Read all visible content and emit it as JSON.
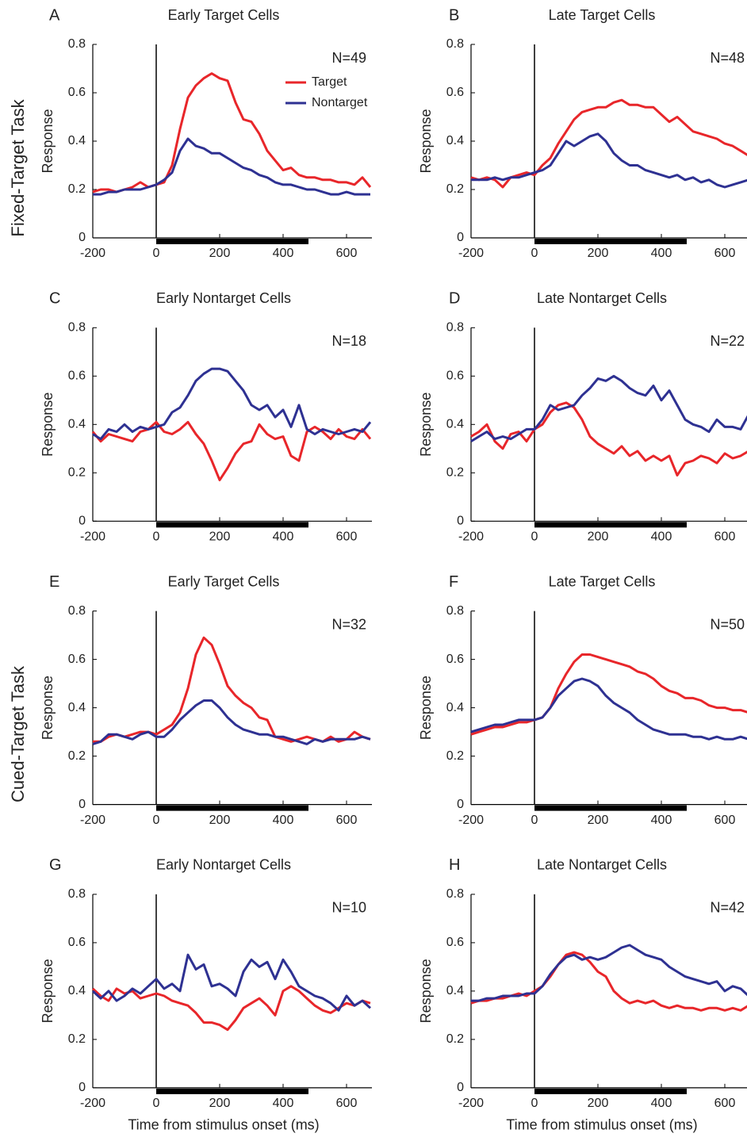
{
  "task_labels": [
    "Fixed-Target Task",
    "Cued-Target Task"
  ],
  "chart_data": [
    {
      "type": "line",
      "panel": "A",
      "title": "Early Target Cells",
      "annotation": "N=49",
      "ylabel": "Response",
      "x": [
        -200,
        -175,
        -150,
        -125,
        -100,
        -75,
        -50,
        -25,
        0,
        25,
        50,
        75,
        100,
        125,
        150,
        175,
        200,
        225,
        250,
        275,
        300,
        325,
        350,
        375,
        400,
        425,
        450,
        475,
        500,
        525,
        550,
        575,
        600,
        625,
        650,
        675
      ],
      "series": [
        {
          "name": "Target",
          "color": "#e8262a",
          "values": [
            0.19,
            0.2,
            0.2,
            0.19,
            0.2,
            0.21,
            0.23,
            0.21,
            0.22,
            0.23,
            0.3,
            0.45,
            0.58,
            0.63,
            0.66,
            0.68,
            0.66,
            0.65,
            0.56,
            0.49,
            0.48,
            0.43,
            0.36,
            0.32,
            0.28,
            0.29,
            0.26,
            0.25,
            0.25,
            0.24,
            0.24,
            0.23,
            0.23,
            0.22,
            0.25,
            0.21
          ]
        },
        {
          "name": "Nontarget",
          "color": "#2e3192",
          "values": [
            0.18,
            0.18,
            0.19,
            0.19,
            0.2,
            0.2,
            0.2,
            0.21,
            0.22,
            0.24,
            0.27,
            0.36,
            0.41,
            0.38,
            0.37,
            0.35,
            0.35,
            0.33,
            0.31,
            0.29,
            0.28,
            0.26,
            0.25,
            0.23,
            0.22,
            0.22,
            0.21,
            0.2,
            0.2,
            0.19,
            0.18,
            0.18,
            0.19,
            0.18,
            0.18,
            0.18
          ]
        }
      ],
      "stimulus_bar": [
        0,
        480
      ],
      "xlim": [
        -200,
        680
      ],
      "ylim": [
        0,
        0.8
      ],
      "xticks": [
        -200,
        0,
        200,
        400,
        600
      ],
      "yticks": [
        0,
        0.2,
        0.4,
        0.6,
        0.8
      ],
      "legend": "upper right"
    },
    {
      "type": "line",
      "panel": "B",
      "title": "Late Target Cells",
      "annotation": "N=48",
      "ylabel": "Response",
      "x": [
        -200,
        -175,
        -150,
        -125,
        -100,
        -75,
        -50,
        -25,
        0,
        25,
        50,
        75,
        100,
        125,
        150,
        175,
        200,
        225,
        250,
        275,
        300,
        325,
        350,
        375,
        400,
        425,
        450,
        475,
        500,
        525,
        550,
        575,
        600,
        625,
        650,
        675
      ],
      "series": [
        {
          "color": "#e8262a",
          "values": [
            0.25,
            0.24,
            0.25,
            0.24,
            0.21,
            0.25,
            0.26,
            0.27,
            0.26,
            0.3,
            0.33,
            0.39,
            0.44,
            0.49,
            0.52,
            0.53,
            0.54,
            0.54,
            0.56,
            0.57,
            0.55,
            0.55,
            0.54,
            0.54,
            0.51,
            0.48,
            0.5,
            0.47,
            0.44,
            0.43,
            0.42,
            0.41,
            0.39,
            0.38,
            0.36,
            0.34
          ]
        },
        {
          "color": "#2e3192",
          "values": [
            0.24,
            0.24,
            0.24,
            0.25,
            0.24,
            0.25,
            0.25,
            0.26,
            0.27,
            0.28,
            0.3,
            0.35,
            0.4,
            0.38,
            0.4,
            0.42,
            0.43,
            0.4,
            0.35,
            0.32,
            0.3,
            0.3,
            0.28,
            0.27,
            0.26,
            0.25,
            0.26,
            0.24,
            0.25,
            0.23,
            0.24,
            0.22,
            0.21,
            0.22,
            0.23,
            0.24
          ]
        }
      ],
      "stimulus_bar": [
        0,
        480
      ],
      "xlim": [
        -200,
        680
      ],
      "ylim": [
        0,
        0.8
      ],
      "xticks": [
        -200,
        0,
        200,
        400,
        600
      ],
      "yticks": [
        0,
        0.2,
        0.4,
        0.6,
        0.8
      ]
    },
    {
      "type": "line",
      "panel": "C",
      "title": "Early Nontarget Cells",
      "annotation": "N=18",
      "ylabel": "Response",
      "x": [
        -200,
        -175,
        -150,
        -125,
        -100,
        -75,
        -50,
        -25,
        0,
        25,
        50,
        75,
        100,
        125,
        150,
        175,
        200,
        225,
        250,
        275,
        300,
        325,
        350,
        375,
        400,
        425,
        450,
        475,
        500,
        525,
        550,
        575,
        600,
        625,
        650,
        675
      ],
      "series": [
        {
          "color": "#e8262a",
          "values": [
            0.37,
            0.33,
            0.36,
            0.35,
            0.34,
            0.33,
            0.37,
            0.38,
            0.41,
            0.37,
            0.36,
            0.38,
            0.41,
            0.36,
            0.32,
            0.25,
            0.17,
            0.22,
            0.28,
            0.32,
            0.33,
            0.4,
            0.36,
            0.34,
            0.35,
            0.27,
            0.25,
            0.37,
            0.39,
            0.37,
            0.34,
            0.38,
            0.35,
            0.34,
            0.38,
            0.34
          ]
        },
        {
          "color": "#2e3192",
          "values": [
            0.36,
            0.34,
            0.38,
            0.37,
            0.4,
            0.37,
            0.39,
            0.38,
            0.39,
            0.4,
            0.45,
            0.47,
            0.52,
            0.58,
            0.61,
            0.63,
            0.63,
            0.62,
            0.58,
            0.54,
            0.48,
            0.46,
            0.48,
            0.43,
            0.46,
            0.39,
            0.48,
            0.38,
            0.36,
            0.38,
            0.37,
            0.36,
            0.37,
            0.38,
            0.37,
            0.41
          ]
        }
      ],
      "stimulus_bar": [
        0,
        480
      ],
      "xlim": [
        -200,
        680
      ],
      "ylim": [
        0,
        0.8
      ],
      "xticks": [
        -200,
        0,
        200,
        400,
        600
      ],
      "yticks": [
        0,
        0.2,
        0.4,
        0.6,
        0.8
      ]
    },
    {
      "type": "line",
      "panel": "D",
      "title": "Late Nontarget Cells",
      "annotation": "N=22",
      "ylabel": "Response",
      "x": [
        -200,
        -175,
        -150,
        -125,
        -100,
        -75,
        -50,
        -25,
        0,
        25,
        50,
        75,
        100,
        125,
        150,
        175,
        200,
        225,
        250,
        275,
        300,
        325,
        350,
        375,
        400,
        425,
        450,
        475,
        500,
        525,
        550,
        575,
        600,
        625,
        650,
        675
      ],
      "series": [
        {
          "color": "#e8262a",
          "values": [
            0.35,
            0.37,
            0.4,
            0.33,
            0.3,
            0.36,
            0.37,
            0.33,
            0.38,
            0.4,
            0.45,
            0.48,
            0.49,
            0.47,
            0.42,
            0.35,
            0.32,
            0.3,
            0.28,
            0.31,
            0.27,
            0.29,
            0.25,
            0.27,
            0.25,
            0.27,
            0.19,
            0.24,
            0.25,
            0.27,
            0.26,
            0.24,
            0.28,
            0.26,
            0.27,
            0.29
          ]
        },
        {
          "color": "#2e3192",
          "values": [
            0.33,
            0.35,
            0.37,
            0.34,
            0.35,
            0.34,
            0.36,
            0.38,
            0.38,
            0.42,
            0.48,
            0.46,
            0.47,
            0.48,
            0.52,
            0.55,
            0.59,
            0.58,
            0.6,
            0.58,
            0.55,
            0.53,
            0.52,
            0.56,
            0.5,
            0.54,
            0.48,
            0.42,
            0.4,
            0.39,
            0.37,
            0.42,
            0.39,
            0.39,
            0.38,
            0.44
          ]
        }
      ],
      "stimulus_bar": [
        0,
        480
      ],
      "xlim": [
        -200,
        680
      ],
      "ylim": [
        0,
        0.8
      ],
      "xticks": [
        -200,
        0,
        200,
        400,
        600
      ],
      "yticks": [
        0,
        0.2,
        0.4,
        0.6,
        0.8
      ]
    },
    {
      "type": "line",
      "panel": "E",
      "title": "Early Target Cells",
      "annotation": "N=32",
      "ylabel": "Response",
      "x": [
        -200,
        -175,
        -150,
        -125,
        -100,
        -75,
        -50,
        -25,
        0,
        25,
        50,
        75,
        100,
        125,
        150,
        175,
        200,
        225,
        250,
        275,
        300,
        325,
        350,
        375,
        400,
        425,
        450,
        475,
        500,
        525,
        550,
        575,
        600,
        625,
        650,
        675
      ],
      "series": [
        {
          "color": "#e8262a",
          "values": [
            0.26,
            0.26,
            0.28,
            0.29,
            0.28,
            0.29,
            0.3,
            0.3,
            0.29,
            0.31,
            0.33,
            0.38,
            0.48,
            0.62,
            0.69,
            0.66,
            0.58,
            0.49,
            0.45,
            0.42,
            0.4,
            0.36,
            0.35,
            0.28,
            0.27,
            0.26,
            0.27,
            0.28,
            0.27,
            0.26,
            0.28,
            0.26,
            0.27,
            0.3,
            0.28,
            0.27
          ]
        },
        {
          "color": "#2e3192",
          "values": [
            0.25,
            0.26,
            0.29,
            0.29,
            0.28,
            0.27,
            0.29,
            0.3,
            0.28,
            0.28,
            0.31,
            0.35,
            0.38,
            0.41,
            0.43,
            0.43,
            0.4,
            0.36,
            0.33,
            0.31,
            0.3,
            0.29,
            0.29,
            0.28,
            0.28,
            0.27,
            0.26,
            0.25,
            0.27,
            0.26,
            0.27,
            0.27,
            0.27,
            0.27,
            0.28,
            0.27
          ]
        }
      ],
      "stimulus_bar": [
        0,
        480
      ],
      "xlim": [
        -200,
        680
      ],
      "ylim": [
        0,
        0.8
      ],
      "xticks": [
        -200,
        0,
        200,
        400,
        600
      ],
      "yticks": [
        0,
        0.2,
        0.4,
        0.6,
        0.8
      ]
    },
    {
      "type": "line",
      "panel": "F",
      "title": "Late Target Cells",
      "annotation": "N=50",
      "ylabel": "Response",
      "x": [
        -200,
        -175,
        -150,
        -125,
        -100,
        -75,
        -50,
        -25,
        0,
        25,
        50,
        75,
        100,
        125,
        150,
        175,
        200,
        225,
        250,
        275,
        300,
        325,
        350,
        375,
        400,
        425,
        450,
        475,
        500,
        525,
        550,
        575,
        600,
        625,
        650,
        675
      ],
      "series": [
        {
          "color": "#e8262a",
          "values": [
            0.29,
            0.3,
            0.31,
            0.32,
            0.32,
            0.33,
            0.34,
            0.34,
            0.35,
            0.36,
            0.4,
            0.48,
            0.54,
            0.59,
            0.62,
            0.62,
            0.61,
            0.6,
            0.59,
            0.58,
            0.57,
            0.55,
            0.54,
            0.52,
            0.49,
            0.47,
            0.46,
            0.44,
            0.44,
            0.43,
            0.41,
            0.4,
            0.4,
            0.39,
            0.39,
            0.38
          ]
        },
        {
          "color": "#2e3192",
          "values": [
            0.3,
            0.31,
            0.32,
            0.33,
            0.33,
            0.34,
            0.35,
            0.35,
            0.35,
            0.36,
            0.4,
            0.45,
            0.48,
            0.51,
            0.52,
            0.51,
            0.49,
            0.45,
            0.42,
            0.4,
            0.38,
            0.35,
            0.33,
            0.31,
            0.3,
            0.29,
            0.29,
            0.29,
            0.28,
            0.28,
            0.27,
            0.28,
            0.27,
            0.27,
            0.28,
            0.27
          ]
        }
      ],
      "stimulus_bar": [
        0,
        480
      ],
      "xlim": [
        -200,
        680
      ],
      "ylim": [
        0,
        0.8
      ],
      "xticks": [
        -200,
        0,
        200,
        400,
        600
      ],
      "yticks": [
        0,
        0.2,
        0.4,
        0.6,
        0.8
      ]
    },
    {
      "type": "line",
      "panel": "G",
      "title": "Early Nontarget Cells",
      "annotation": "N=10",
      "ylabel": "Response",
      "xlabel": "Time from stimulus onset (ms)",
      "x": [
        -200,
        -175,
        -150,
        -125,
        -100,
        -75,
        -50,
        -25,
        0,
        25,
        50,
        75,
        100,
        125,
        150,
        175,
        200,
        225,
        250,
        275,
        300,
        325,
        350,
        375,
        400,
        425,
        450,
        475,
        500,
        525,
        550,
        575,
        600,
        625,
        650,
        675
      ],
      "series": [
        {
          "color": "#e8262a",
          "values": [
            0.41,
            0.38,
            0.36,
            0.41,
            0.39,
            0.4,
            0.37,
            0.38,
            0.39,
            0.38,
            0.36,
            0.35,
            0.34,
            0.31,
            0.27,
            0.27,
            0.26,
            0.24,
            0.28,
            0.33,
            0.35,
            0.37,
            0.34,
            0.3,
            0.4,
            0.42,
            0.4,
            0.37,
            0.34,
            0.32,
            0.31,
            0.33,
            0.35,
            0.34,
            0.36,
            0.35
          ]
        },
        {
          "color": "#2e3192",
          "values": [
            0.4,
            0.37,
            0.4,
            0.36,
            0.38,
            0.41,
            0.39,
            0.42,
            0.45,
            0.41,
            0.43,
            0.4,
            0.55,
            0.49,
            0.51,
            0.42,
            0.43,
            0.41,
            0.38,
            0.48,
            0.53,
            0.5,
            0.52,
            0.45,
            0.53,
            0.48,
            0.42,
            0.4,
            0.38,
            0.37,
            0.35,
            0.32,
            0.38,
            0.34,
            0.36,
            0.33
          ]
        }
      ],
      "stimulus_bar": [
        0,
        480
      ],
      "xlim": [
        -200,
        680
      ],
      "ylim": [
        0,
        0.8
      ],
      "xticks": [
        -200,
        0,
        200,
        400,
        600
      ],
      "yticks": [
        0,
        0.2,
        0.4,
        0.6,
        0.8
      ]
    },
    {
      "type": "line",
      "panel": "H",
      "title": "Late Nontarget Cells",
      "annotation": "N=42",
      "ylabel": "Response",
      "xlabel": "Time from stimulus onset (ms)",
      "x": [
        -200,
        -175,
        -150,
        -125,
        -100,
        -75,
        -50,
        -25,
        0,
        25,
        50,
        75,
        100,
        125,
        150,
        175,
        200,
        225,
        250,
        275,
        300,
        325,
        350,
        375,
        400,
        425,
        450,
        475,
        500,
        525,
        550,
        575,
        600,
        625,
        650,
        675
      ],
      "series": [
        {
          "color": "#e8262a",
          "values": [
            0.35,
            0.36,
            0.36,
            0.37,
            0.37,
            0.38,
            0.39,
            0.38,
            0.4,
            0.42,
            0.46,
            0.51,
            0.55,
            0.56,
            0.55,
            0.52,
            0.48,
            0.46,
            0.4,
            0.37,
            0.35,
            0.36,
            0.35,
            0.36,
            0.34,
            0.33,
            0.34,
            0.33,
            0.33,
            0.32,
            0.33,
            0.33,
            0.32,
            0.33,
            0.32,
            0.34
          ]
        },
        {
          "color": "#2e3192",
          "values": [
            0.36,
            0.36,
            0.37,
            0.37,
            0.38,
            0.38,
            0.38,
            0.39,
            0.39,
            0.42,
            0.47,
            0.51,
            0.54,
            0.55,
            0.53,
            0.54,
            0.53,
            0.54,
            0.56,
            0.58,
            0.59,
            0.57,
            0.55,
            0.54,
            0.53,
            0.5,
            0.48,
            0.46,
            0.45,
            0.44,
            0.43,
            0.44,
            0.4,
            0.42,
            0.41,
            0.38
          ]
        }
      ],
      "stimulus_bar": [
        0,
        480
      ],
      "xlim": [
        -200,
        680
      ],
      "ylim": [
        0,
        0.8
      ],
      "xticks": [
        -200,
        0,
        200,
        400,
        600
      ],
      "yticks": [
        0,
        0.2,
        0.4,
        0.6,
        0.8
      ]
    }
  ]
}
